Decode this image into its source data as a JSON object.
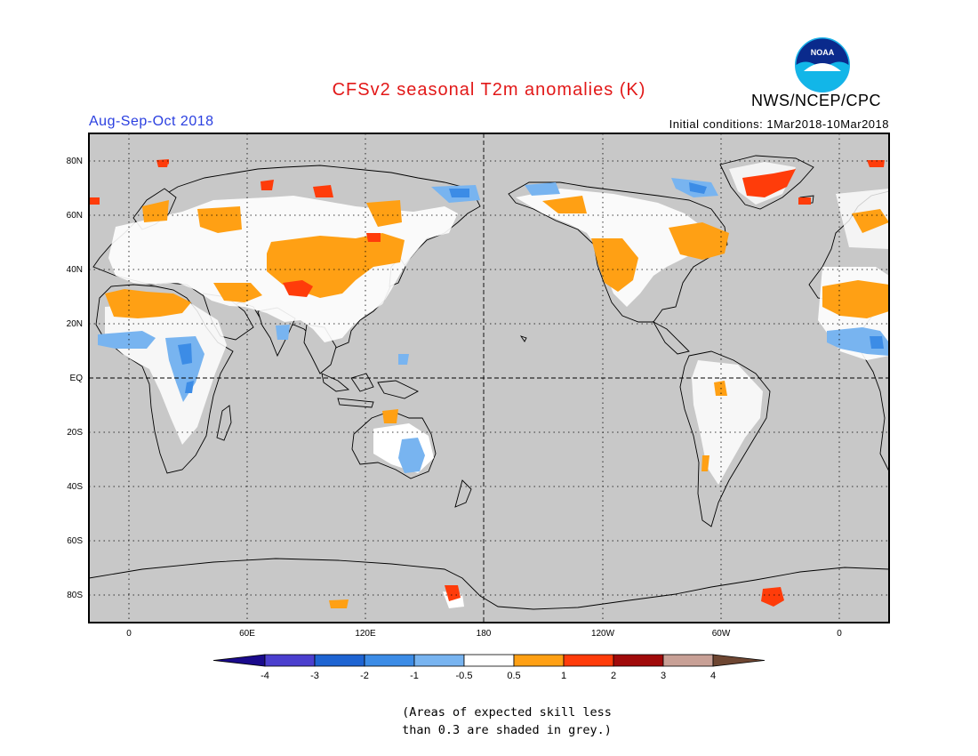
{
  "header": {
    "title": "CFSv2 seasonal T2m anomalies (K)",
    "org": "NWS/NCEP/CPC",
    "logo_text": "NOAA",
    "period": "Aug-Sep-Oct 2018",
    "initial_conditions": "Initial conditions: 1Mar2018-10Mar2018"
  },
  "map": {
    "projection": "cylindrical equidistant",
    "lon_ticks": [
      "0",
      "60E",
      "120E",
      "180",
      "120W",
      "60W",
      "0"
    ],
    "lat_ticks": [
      "80N",
      "60N",
      "40N",
      "20N",
      "EQ",
      "20S",
      "40S",
      "60S",
      "80S"
    ],
    "ocean_color": "#c8c8c8",
    "coastline_color": "#000000",
    "gridline_style": "dotted"
  },
  "legend": {
    "tick_labels": [
      "-4",
      "-3",
      "-2",
      "-1",
      "-0.5",
      "0.5",
      "1",
      "2",
      "3",
      "4"
    ],
    "colors": [
      "#1a0a8c",
      "#4b3fce",
      "#1e64d2",
      "#3c8ce6",
      "#78b4f0",
      "#ffffff",
      "#ffa014",
      "#ff3c0a",
      "#a00a0a",
      "#c8a096",
      "#6e4632"
    ]
  },
  "footnote": {
    "line1": "(Areas of expected skill less",
    "line2": "than 0.3 are shaded in grey.)"
  }
}
